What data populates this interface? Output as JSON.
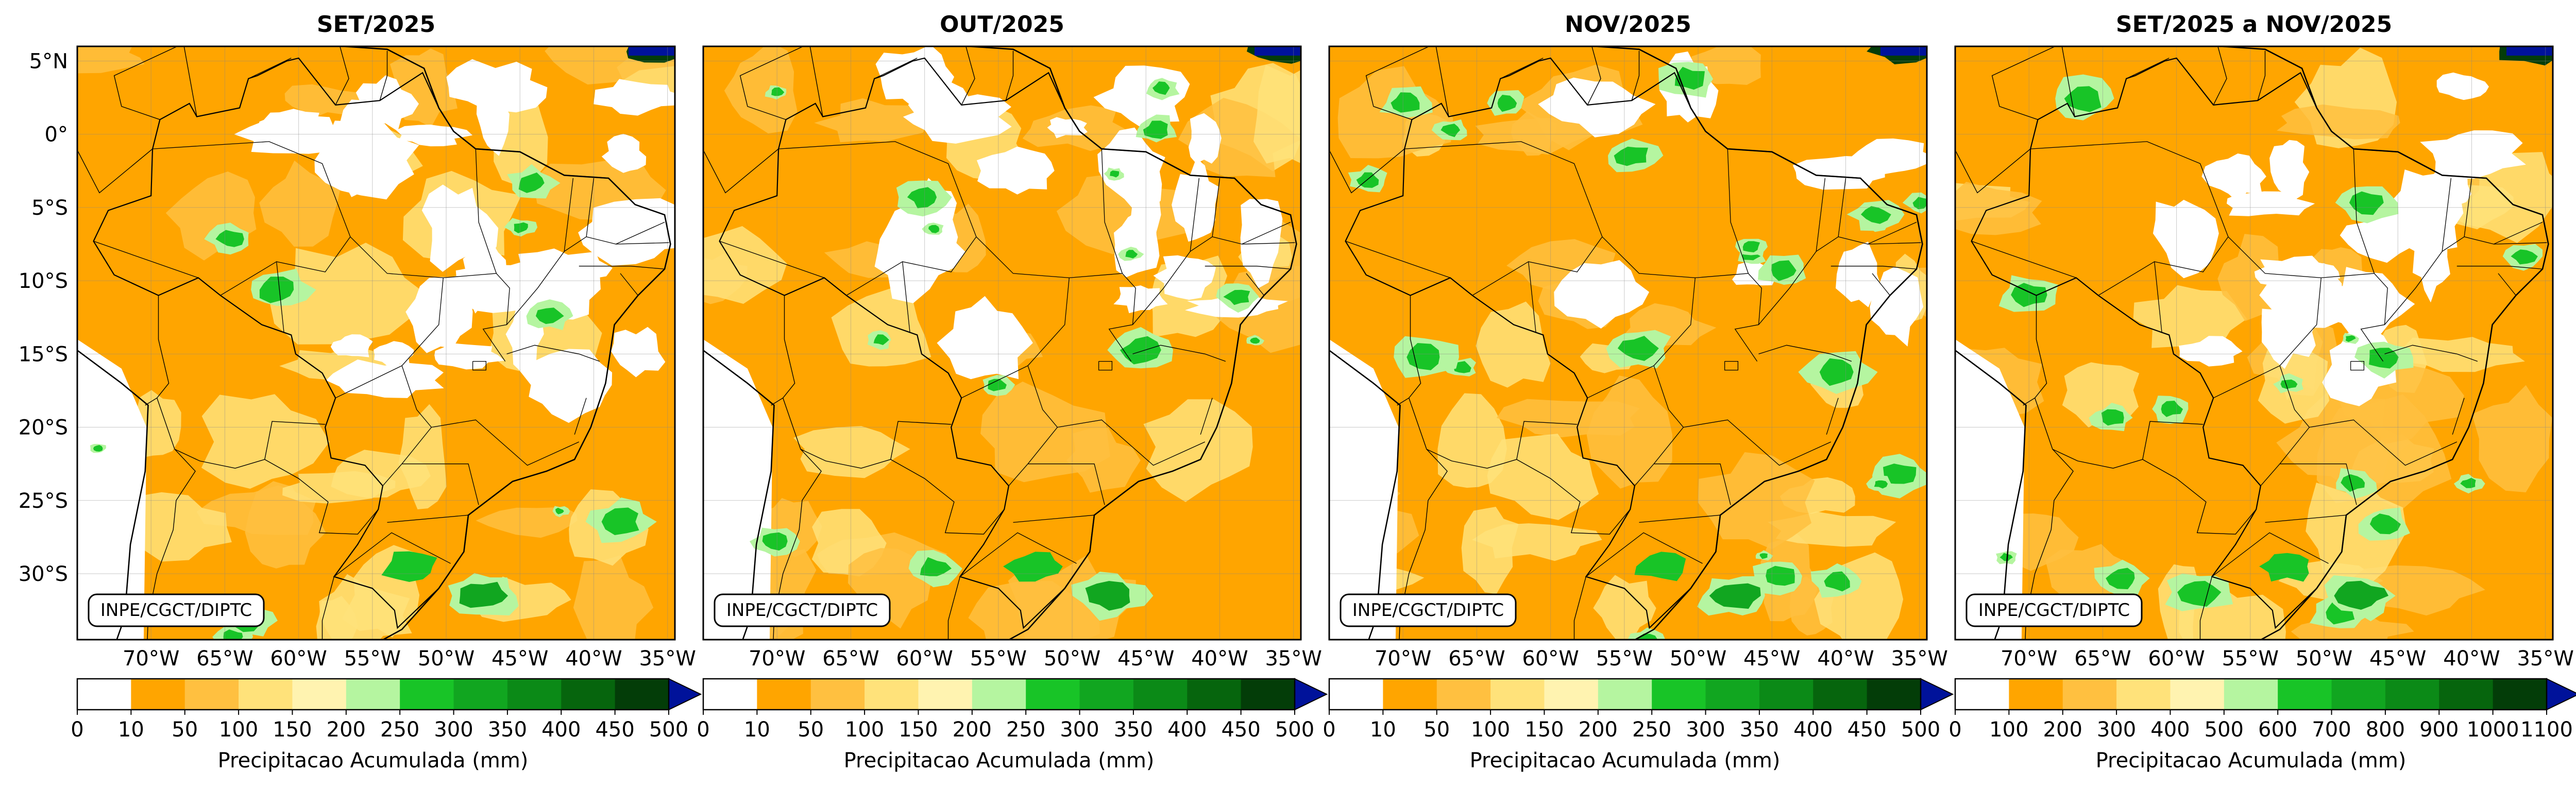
{
  "panels": [
    {
      "title": "SET/2025",
      "credit": "INPE/CGCT/DIPTC",
      "colorbar": {
        "ticks": [
          "0",
          "10",
          "50",
          "100",
          "150",
          "200",
          "250",
          "300",
          "350",
          "400",
          "450",
          "500"
        ],
        "label": "Precipitacao Acumulada (mm)"
      }
    },
    {
      "title": "OUT/2025",
      "credit": "INPE/CGCT/DIPTC",
      "colorbar": {
        "ticks": [
          "0",
          "10",
          "50",
          "100",
          "150",
          "200",
          "250",
          "300",
          "350",
          "400",
          "450",
          "500"
        ],
        "label": "Precipitacao Acumulada (mm)"
      }
    },
    {
      "title": "NOV/2025",
      "credit": "INPE/CGCT/DIPTC",
      "colorbar": {
        "ticks": [
          "0",
          "10",
          "50",
          "100",
          "150",
          "200",
          "250",
          "300",
          "350",
          "400",
          "450",
          "500"
        ],
        "label": "Precipitacao Acumulada (mm)"
      }
    },
    {
      "title": "SET/2025 a NOV/2025",
      "credit": "INPE/CGCT/DIPTC",
      "colorbar": {
        "ticks": [
          "0",
          "100",
          "200",
          "300",
          "400",
          "500",
          "600",
          "700",
          "800",
          "900",
          "1000",
          "1100"
        ],
        "label": "Precipitacao Acumulada (mm)"
      }
    }
  ],
  "lat_labels": [
    "5°N",
    "0°",
    "5°S",
    "10°S",
    "15°S",
    "20°S",
    "25°S",
    "30°S"
  ],
  "lon_labels": [
    "70°W",
    "65°W",
    "60°W",
    "55°W",
    "50°W",
    "45°W",
    "40°W",
    "35°W"
  ],
  "colors": {
    "no_rain": "#ffffff",
    "orange": "#ffa500",
    "light_orange": "#ffc040",
    "yellow": "#ffe27a",
    "pale_yellow": "#fff3b0",
    "light_green": "#b5f5a0",
    "green": "#18c427",
    "mid_green": "#11a620",
    "dark_green": "#0b8a17",
    "darker_green": "#06650d",
    "darkest_green": "#033d08",
    "extend_blue": "#00129a"
  }
}
